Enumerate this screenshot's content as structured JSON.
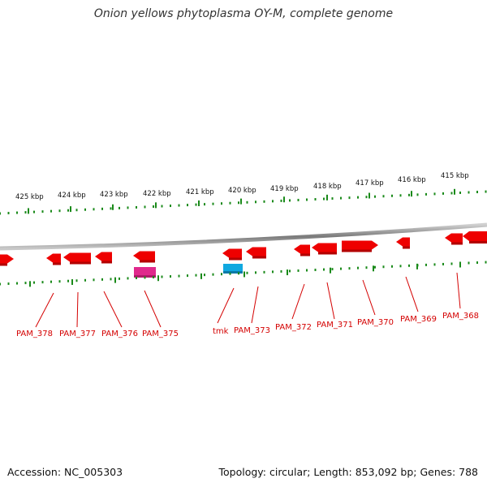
{
  "title": "Onion yellows phytoplasma OY-M, complete genome",
  "footer": {
    "accession": "Accession: NC_005303",
    "summary": "Topology: circular; Length: 853,092 bp; Genes: 788"
  },
  "scale_labels": [
    "425 kbp",
    "424 kbp",
    "423 kbp",
    "422 kbp",
    "421 kbp",
    "420 kbp",
    "419 kbp",
    "418 kbp",
    "417 kbp",
    "416 kbp",
    "415 kbp"
  ],
  "gene_labels": [
    "PAM_378",
    "PAM_377",
    "PAM_376",
    "PAM_375",
    "tmk",
    "PAM_373",
    "PAM_372",
    "PAM_371",
    "PAM_370",
    "PAM_369",
    "PAM_368"
  ],
  "colors": {
    "backbone": "#8a8a8a",
    "tick": "#1a8a1a",
    "gene": "#ee0000",
    "gene_label": "#d40000",
    "pink_feature": "#e0288c",
    "cyan_feature": "#10a8e0"
  }
}
